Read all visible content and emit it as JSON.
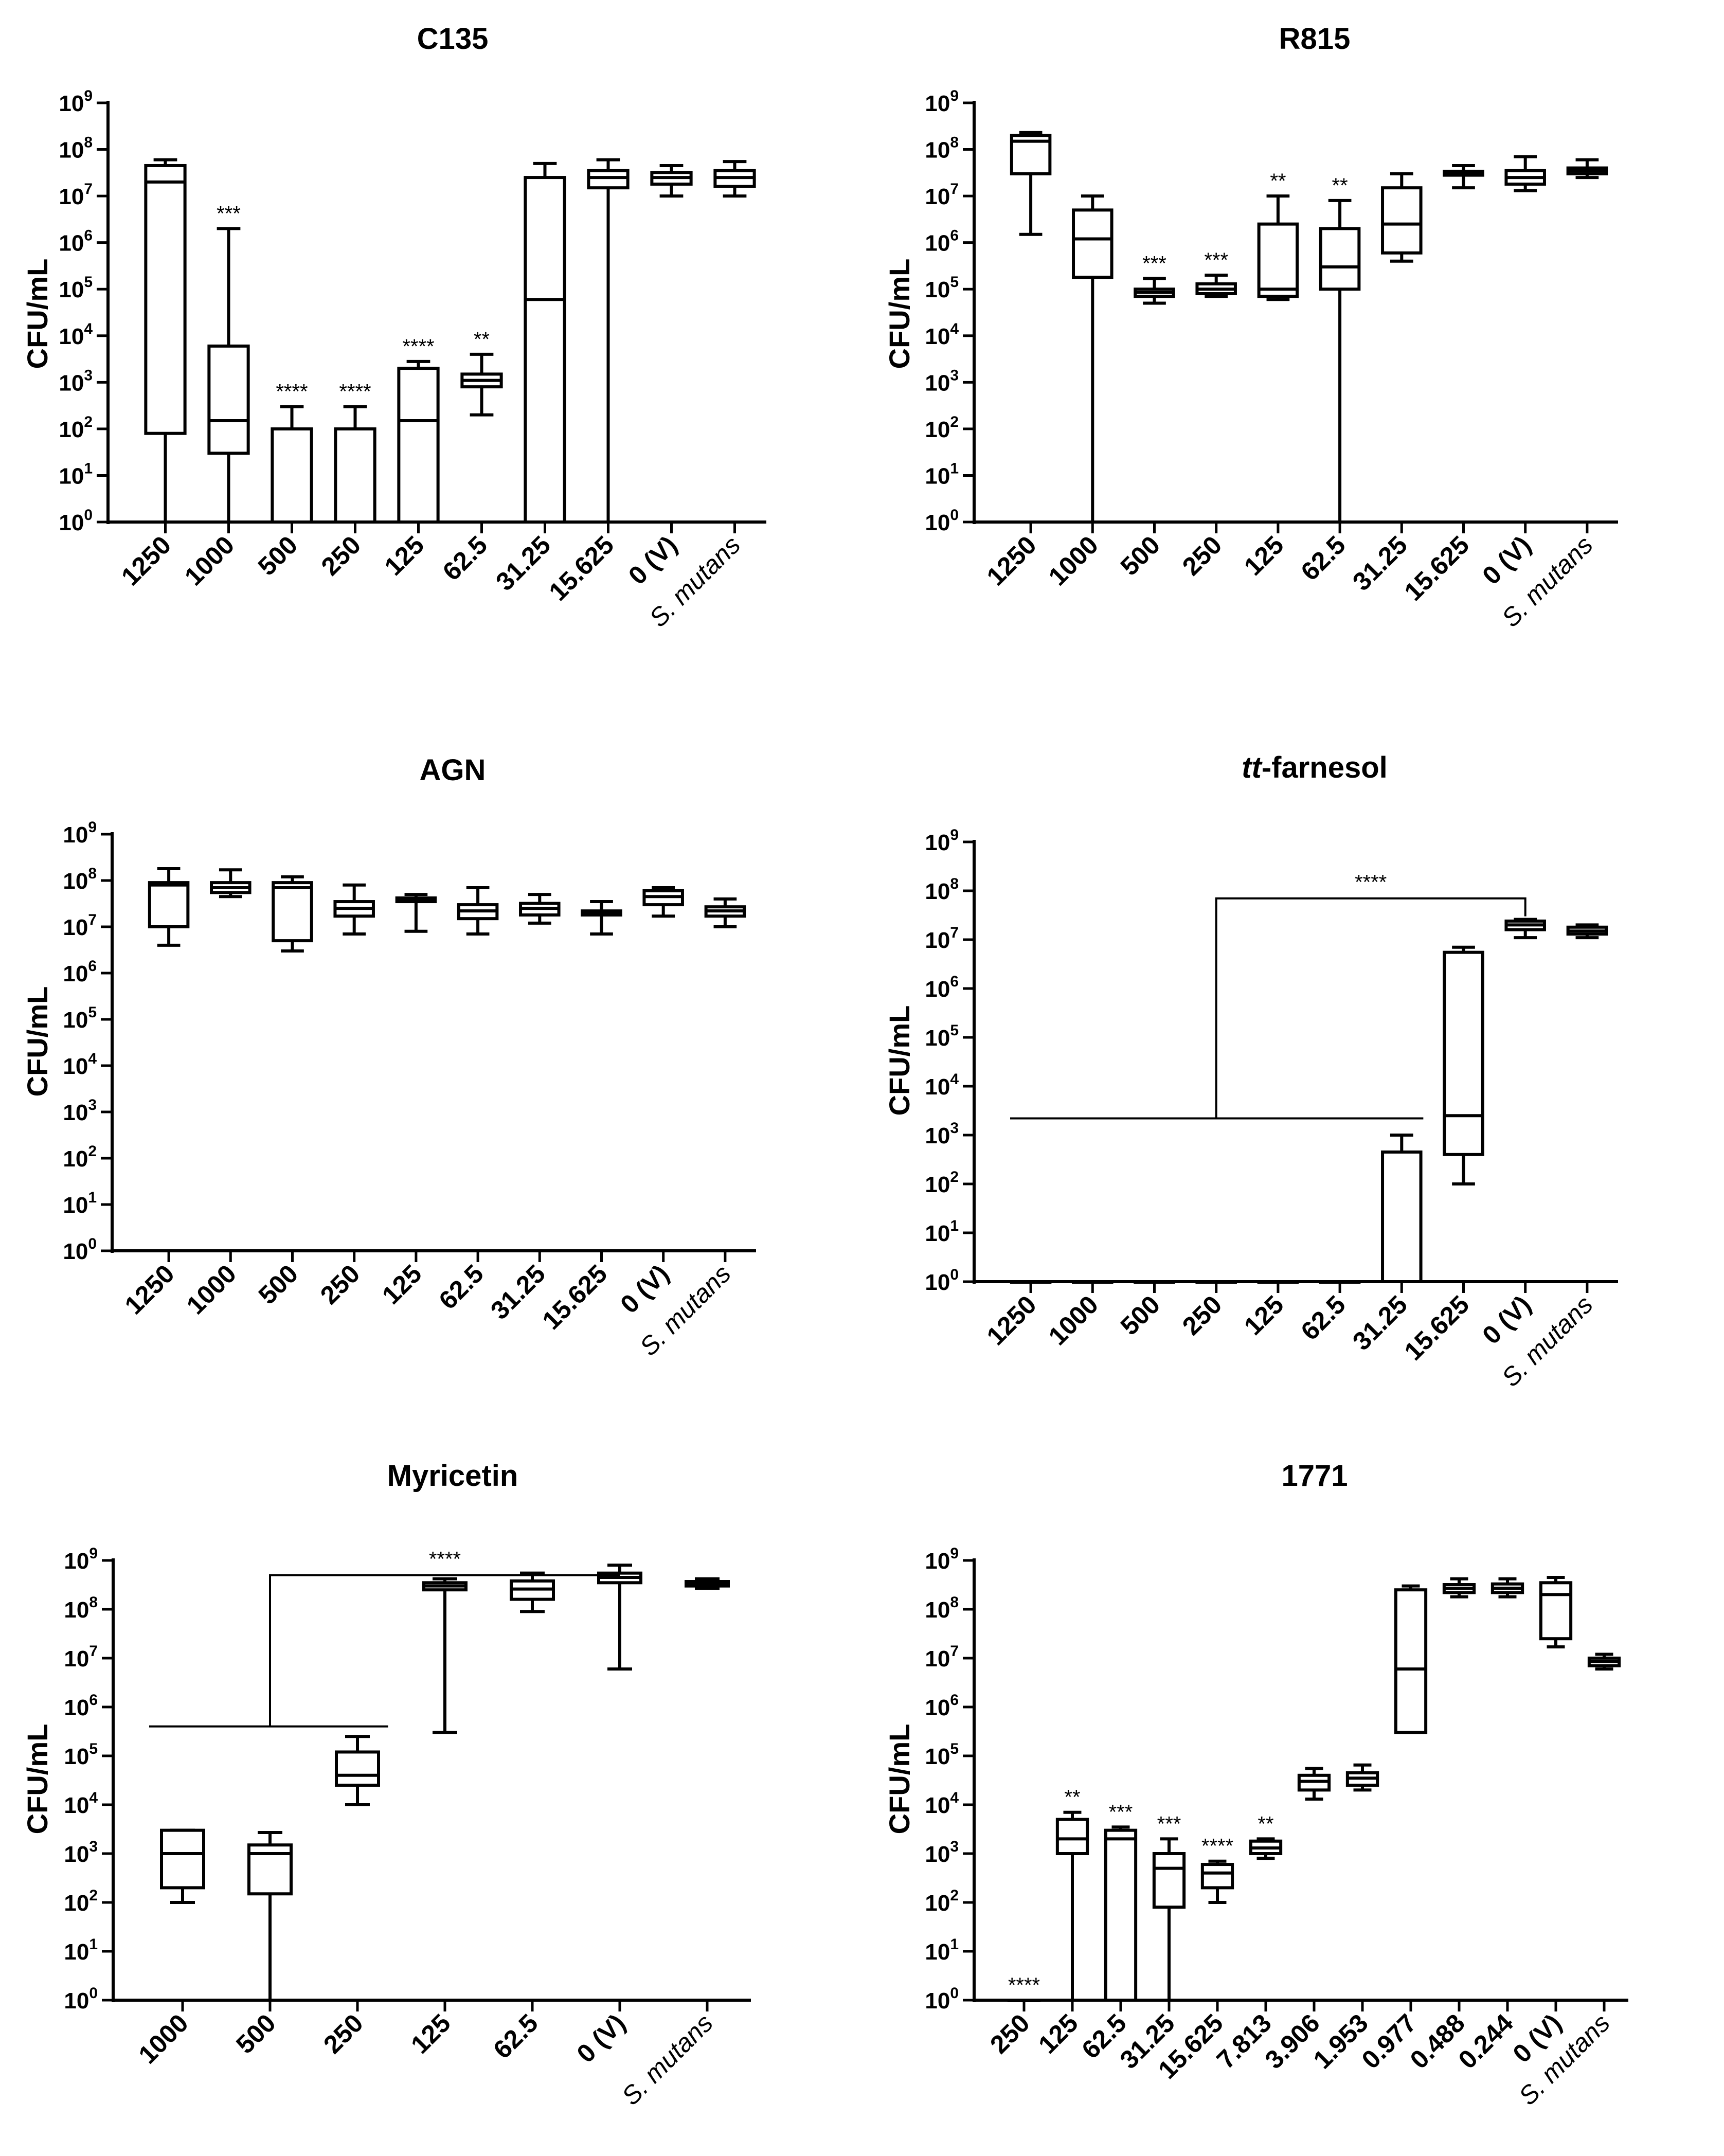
{
  "chart_data": [
    {
      "type": "boxplot",
      "title": "C135",
      "ylabel": "CFU/mL",
      "yscale": "log",
      "ylim": [
        1,
        1000000000
      ],
      "yticks": [
        "10^0",
        "10^1",
        "10^2",
        "10^3",
        "10^4",
        "10^5",
        "10^6",
        "10^7",
        "10^8",
        "10^9"
      ],
      "categories": [
        "1250",
        "1000",
        "500",
        "250",
        "125",
        "62.5",
        "31.25",
        "15.625",
        "0 (V)",
        "S. mutans"
      ],
      "boxes": [
        {
          "min": 1,
          "q1": 80,
          "median": 20000000,
          "q3": 45000000,
          "max": 60000000,
          "annotation": ""
        },
        {
          "min": 1,
          "q1": 30,
          "median": 150,
          "q3": 6000,
          "max": 2000000,
          "annotation": "***"
        },
        {
          "min": 1,
          "q1": 1,
          "median": 1,
          "q3": 100,
          "max": 300,
          "annotation": "****"
        },
        {
          "min": 1,
          "q1": 1,
          "median": 1,
          "q3": 100,
          "max": 300,
          "annotation": "****"
        },
        {
          "min": 1,
          "q1": 1,
          "median": 150,
          "q3": 2000,
          "max": 2800,
          "annotation": "****"
        },
        {
          "min": 200,
          "q1": 800,
          "median": 1100,
          "q3": 1500,
          "max": 4000,
          "annotation": "**"
        },
        {
          "min": 1,
          "q1": 1,
          "median": 60000,
          "q3": 25000000,
          "max": 50000000,
          "annotation": ""
        },
        {
          "min": 1,
          "q1": 15000000,
          "median": 25000000,
          "q3": 35000000,
          "max": 60000000,
          "annotation": ""
        },
        {
          "min": 10000000,
          "q1": 18000000,
          "median": 25000000,
          "q3": 32000000,
          "max": 45000000,
          "annotation": ""
        },
        {
          "min": 10000000,
          "q1": 16000000,
          "median": 25000000,
          "q3": 35000000,
          "max": 55000000,
          "annotation": ""
        }
      ],
      "brackets": []
    },
    {
      "type": "boxplot",
      "title": "R815",
      "ylabel": "CFU/mL",
      "yscale": "log",
      "ylim": [
        1,
        1000000000
      ],
      "yticks": [
        "10^0",
        "10^1",
        "10^2",
        "10^3",
        "10^4",
        "10^5",
        "10^6",
        "10^7",
        "10^8",
        "10^9"
      ],
      "categories": [
        "1250",
        "1000",
        "500",
        "250",
        "125",
        "62.5",
        "31.25",
        "15.625",
        "0 (V)",
        "S. mutans"
      ],
      "boxes": [
        {
          "min": 1500000,
          "q1": 30000000,
          "median": 150000000,
          "q3": 200000000,
          "max": 230000000,
          "annotation": ""
        },
        {
          "min": 1,
          "q1": 180000,
          "median": 1200000,
          "q3": 5000000,
          "max": 10000000,
          "annotation": ""
        },
        {
          "min": 50000,
          "q1": 70000,
          "median": 85000,
          "q3": 100000,
          "max": 170000,
          "annotation": "***"
        },
        {
          "min": 70000,
          "q1": 80000,
          "median": 100000,
          "q3": 130000,
          "max": 200000,
          "annotation": "***"
        },
        {
          "min": 60000,
          "q1": 70000,
          "median": 100000,
          "q3": 2500000,
          "max": 10000000,
          "annotation": "**"
        },
        {
          "min": 1,
          "q1": 100000,
          "median": 300000,
          "q3": 2000000,
          "max": 8000000,
          "annotation": "**"
        },
        {
          "min": 400000,
          "q1": 600000,
          "median": 2500000,
          "q3": 15000000,
          "max": 30000000,
          "annotation": ""
        },
        {
          "min": 15000000,
          "q1": 28000000,
          "median": 32000000,
          "q3": 34000000,
          "max": 45000000,
          "annotation": ""
        },
        {
          "min": 13000000,
          "q1": 18000000,
          "median": 25000000,
          "q3": 35000000,
          "max": 70000000,
          "annotation": ""
        },
        {
          "min": 25000000,
          "q1": 30000000,
          "median": 35000000,
          "q3": 40000000,
          "max": 60000000,
          "annotation": ""
        }
      ],
      "brackets": []
    },
    {
      "type": "boxplot",
      "title": "AGN",
      "ylabel": "CFU/mL",
      "yscale": "log",
      "ylim": [
        1,
        1000000000
      ],
      "yticks": [
        "10^0",
        "10^1",
        "10^2",
        "10^3",
        "10^4",
        "10^5",
        "10^6",
        "10^7",
        "10^8",
        "10^9"
      ],
      "categories": [
        "1250",
        "1000",
        "500",
        "250",
        "125",
        "62.5",
        "31.25",
        "15.625",
        "0 (V)",
        "S. mutans"
      ],
      "boxes": [
        {
          "min": 4000000,
          "q1": 10000000,
          "median": 80000000,
          "q3": 90000000,
          "max": 180000000,
          "annotation": ""
        },
        {
          "min": 45000000,
          "q1": 55000000,
          "median": 70000000,
          "q3": 90000000,
          "max": 170000000,
          "annotation": ""
        },
        {
          "min": 3000000,
          "q1": 5000000,
          "median": 70000000,
          "q3": 90000000,
          "max": 120000000,
          "annotation": ""
        },
        {
          "min": 7000000,
          "q1": 17000000,
          "median": 25000000,
          "q3": 35000000,
          "max": 80000000,
          "annotation": ""
        },
        {
          "min": 8000000,
          "q1": 35000000,
          "median": 38000000,
          "q3": 42000000,
          "max": 50000000,
          "annotation": ""
        },
        {
          "min": 7000000,
          "q1": 15000000,
          "median": 22000000,
          "q3": 30000000,
          "max": 70000000,
          "annotation": ""
        },
        {
          "min": 12000000,
          "q1": 18000000,
          "median": 25000000,
          "q3": 32000000,
          "max": 50000000,
          "annotation": ""
        },
        {
          "min": 7000000,
          "q1": 18000000,
          "median": 20000000,
          "q3": 22000000,
          "max": 35000000,
          "annotation": ""
        },
        {
          "min": 17000000,
          "q1": 30000000,
          "median": 45000000,
          "q3": 60000000,
          "max": 70000000,
          "annotation": ""
        },
        {
          "min": 10000000,
          "q1": 17000000,
          "median": 22000000,
          "q3": 27000000,
          "max": 40000000,
          "annotation": ""
        }
      ],
      "brackets": []
    },
    {
      "type": "boxplot",
      "title": "tt-farnesol",
      "title_italic": "tt",
      "title_rest": "-farnesol",
      "ylabel": "CFU/mL",
      "yscale": "log",
      "ylim": [
        1,
        1000000000
      ],
      "yticks": [
        "10^0",
        "10^1",
        "10^2",
        "10^3",
        "10^4",
        "10^5",
        "10^6",
        "10^7",
        "10^8",
        "10^9"
      ],
      "categories": [
        "1250",
        "1000",
        "500",
        "250",
        "125",
        "62.5",
        "31.25",
        "15.625",
        "0 (V)",
        "S. mutans"
      ],
      "boxes": [
        {
          "min": 1,
          "q1": 1,
          "median": 1,
          "q3": 1,
          "max": 1,
          "annotation": ""
        },
        {
          "min": 1,
          "q1": 1,
          "median": 1,
          "q3": 1,
          "max": 1,
          "annotation": ""
        },
        {
          "min": 1,
          "q1": 1,
          "median": 1,
          "q3": 1,
          "max": 1,
          "annotation": ""
        },
        {
          "min": 1,
          "q1": 1,
          "median": 1,
          "q3": 1,
          "max": 1,
          "annotation": ""
        },
        {
          "min": 1,
          "q1": 1,
          "median": 1,
          "q3": 1,
          "max": 1,
          "annotation": ""
        },
        {
          "min": 1,
          "q1": 1,
          "median": 1,
          "q3": 1,
          "max": 1,
          "annotation": ""
        },
        {
          "min": 1,
          "q1": 1,
          "median": 1,
          "q3": 450,
          "max": 1000,
          "annotation": ""
        },
        {
          "min": 100,
          "q1": 400,
          "median": 2500,
          "q3": 5500000,
          "max": 7000000,
          "annotation": ""
        },
        {
          "min": 11000000,
          "q1": 16000000,
          "median": 20000000,
          "q3": 24000000,
          "max": 26000000,
          "annotation": ""
        },
        {
          "min": 11000000,
          "q1": 13000000,
          "median": 15000000,
          "q3": 18000000,
          "max": 20000000,
          "annotation": ""
        }
      ],
      "brackets": [
        {
          "label": "****",
          "from_index": 0,
          "to_index": 6,
          "target_index": 8,
          "group_level": 2200,
          "top_level": 70000000,
          "target_level": 30000000
        }
      ]
    },
    {
      "type": "boxplot",
      "title": "Myricetin",
      "ylabel": "CFU/mL",
      "yscale": "log",
      "ylim": [
        1,
        1000000000
      ],
      "yticks": [
        "10^0",
        "10^1",
        "10^2",
        "10^3",
        "10^4",
        "10^5",
        "10^6",
        "10^7",
        "10^8",
        "10^9"
      ],
      "categories": [
        "1000",
        "500",
        "250",
        "125",
        "62.5",
        "0 (V)",
        "S. mutans"
      ],
      "boxes": [
        {
          "min": 100,
          "q1": 200,
          "median": 1000,
          "q3": 3000,
          "max": 3000,
          "annotation": ""
        },
        {
          "min": 1,
          "q1": 150,
          "median": 1000,
          "q3": 1500,
          "max": 2700,
          "annotation": ""
        },
        {
          "min": 10000,
          "q1": 25000,
          "median": 40000,
          "q3": 120000,
          "max": 250000,
          "annotation": ""
        },
        {
          "min": 300000,
          "q1": 250000000,
          "median": 300000000,
          "q3": 350000000,
          "max": 420000000,
          "annotation": ""
        },
        {
          "min": 90000000,
          "q1": 160000000,
          "median": 260000000,
          "q3": 380000000,
          "max": 550000000,
          "annotation": ""
        },
        {
          "min": 6000000,
          "q1": 350000000,
          "median": 450000000,
          "q3": 550000000,
          "max": 800000000,
          "annotation": ""
        },
        {
          "min": 270000000,
          "q1": 300000000,
          "median": 330000000,
          "q3": 370000000,
          "max": 420000000,
          "annotation": ""
        }
      ],
      "brackets": [
        {
          "label": "****",
          "from_index": 0,
          "to_index": 2,
          "target_index": 5,
          "group_level": 400000,
          "top_level": 500000000,
          "target_level": 500000000
        }
      ]
    },
    {
      "type": "boxplot",
      "title": "1771",
      "ylabel": "CFU/mL",
      "yscale": "log",
      "ylim": [
        1,
        1000000000
      ],
      "yticks": [
        "10^0",
        "10^1",
        "10^2",
        "10^3",
        "10^4",
        "10^5",
        "10^6",
        "10^7",
        "10^8",
        "10^9"
      ],
      "categories": [
        "250",
        "125",
        "62.5",
        "31.25",
        "15.625",
        "7.813",
        "3.906",
        "1.953",
        "0.977",
        "0.488",
        "0.244",
        "0 (V)",
        "S. mutans"
      ],
      "boxes": [
        {
          "min": 1,
          "q1": 1,
          "median": 1,
          "q3": 1,
          "max": 1,
          "annotation": "****"
        },
        {
          "min": 1,
          "q1": 1000,
          "median": 2000,
          "q3": 5000,
          "max": 7000,
          "annotation": "**"
        },
        {
          "min": 1,
          "q1": 1,
          "median": 2000,
          "q3": 3000,
          "max": 3500,
          "annotation": "***"
        },
        {
          "min": 1,
          "q1": 80,
          "median": 500,
          "q3": 1000,
          "max": 2000,
          "annotation": "***"
        },
        {
          "min": 100,
          "q1": 200,
          "median": 400,
          "q3": 600,
          "max": 700,
          "annotation": "****"
        },
        {
          "min": 800,
          "q1": 1000,
          "median": 1300,
          "q3": 1800,
          "max": 2000,
          "annotation": "**"
        },
        {
          "min": 13000,
          "q1": 20000,
          "median": 30000,
          "q3": 40000,
          "max": 55000,
          "annotation": ""
        },
        {
          "min": 20000,
          "q1": 25000,
          "median": 35000,
          "q3": 45000,
          "max": 65000,
          "annotation": ""
        },
        {
          "min": 300000,
          "q1": 300000,
          "median": 6000000,
          "q3": 250000000,
          "max": 300000000,
          "annotation": ""
        },
        {
          "min": 180000000,
          "q1": 220000000,
          "median": 270000000,
          "q3": 320000000,
          "max": 420000000,
          "annotation": ""
        },
        {
          "min": 180000000,
          "q1": 220000000,
          "median": 270000000,
          "q3": 330000000,
          "max": 420000000,
          "annotation": ""
        },
        {
          "min": 17000000,
          "q1": 25000000,
          "median": 200000000,
          "q3": 350000000,
          "max": 450000000,
          "annotation": ""
        },
        {
          "min": 6000000,
          "q1": 7000000,
          "median": 8500000,
          "q3": 10000000,
          "max": 12000000,
          "annotation": ""
        }
      ],
      "brackets": []
    }
  ]
}
